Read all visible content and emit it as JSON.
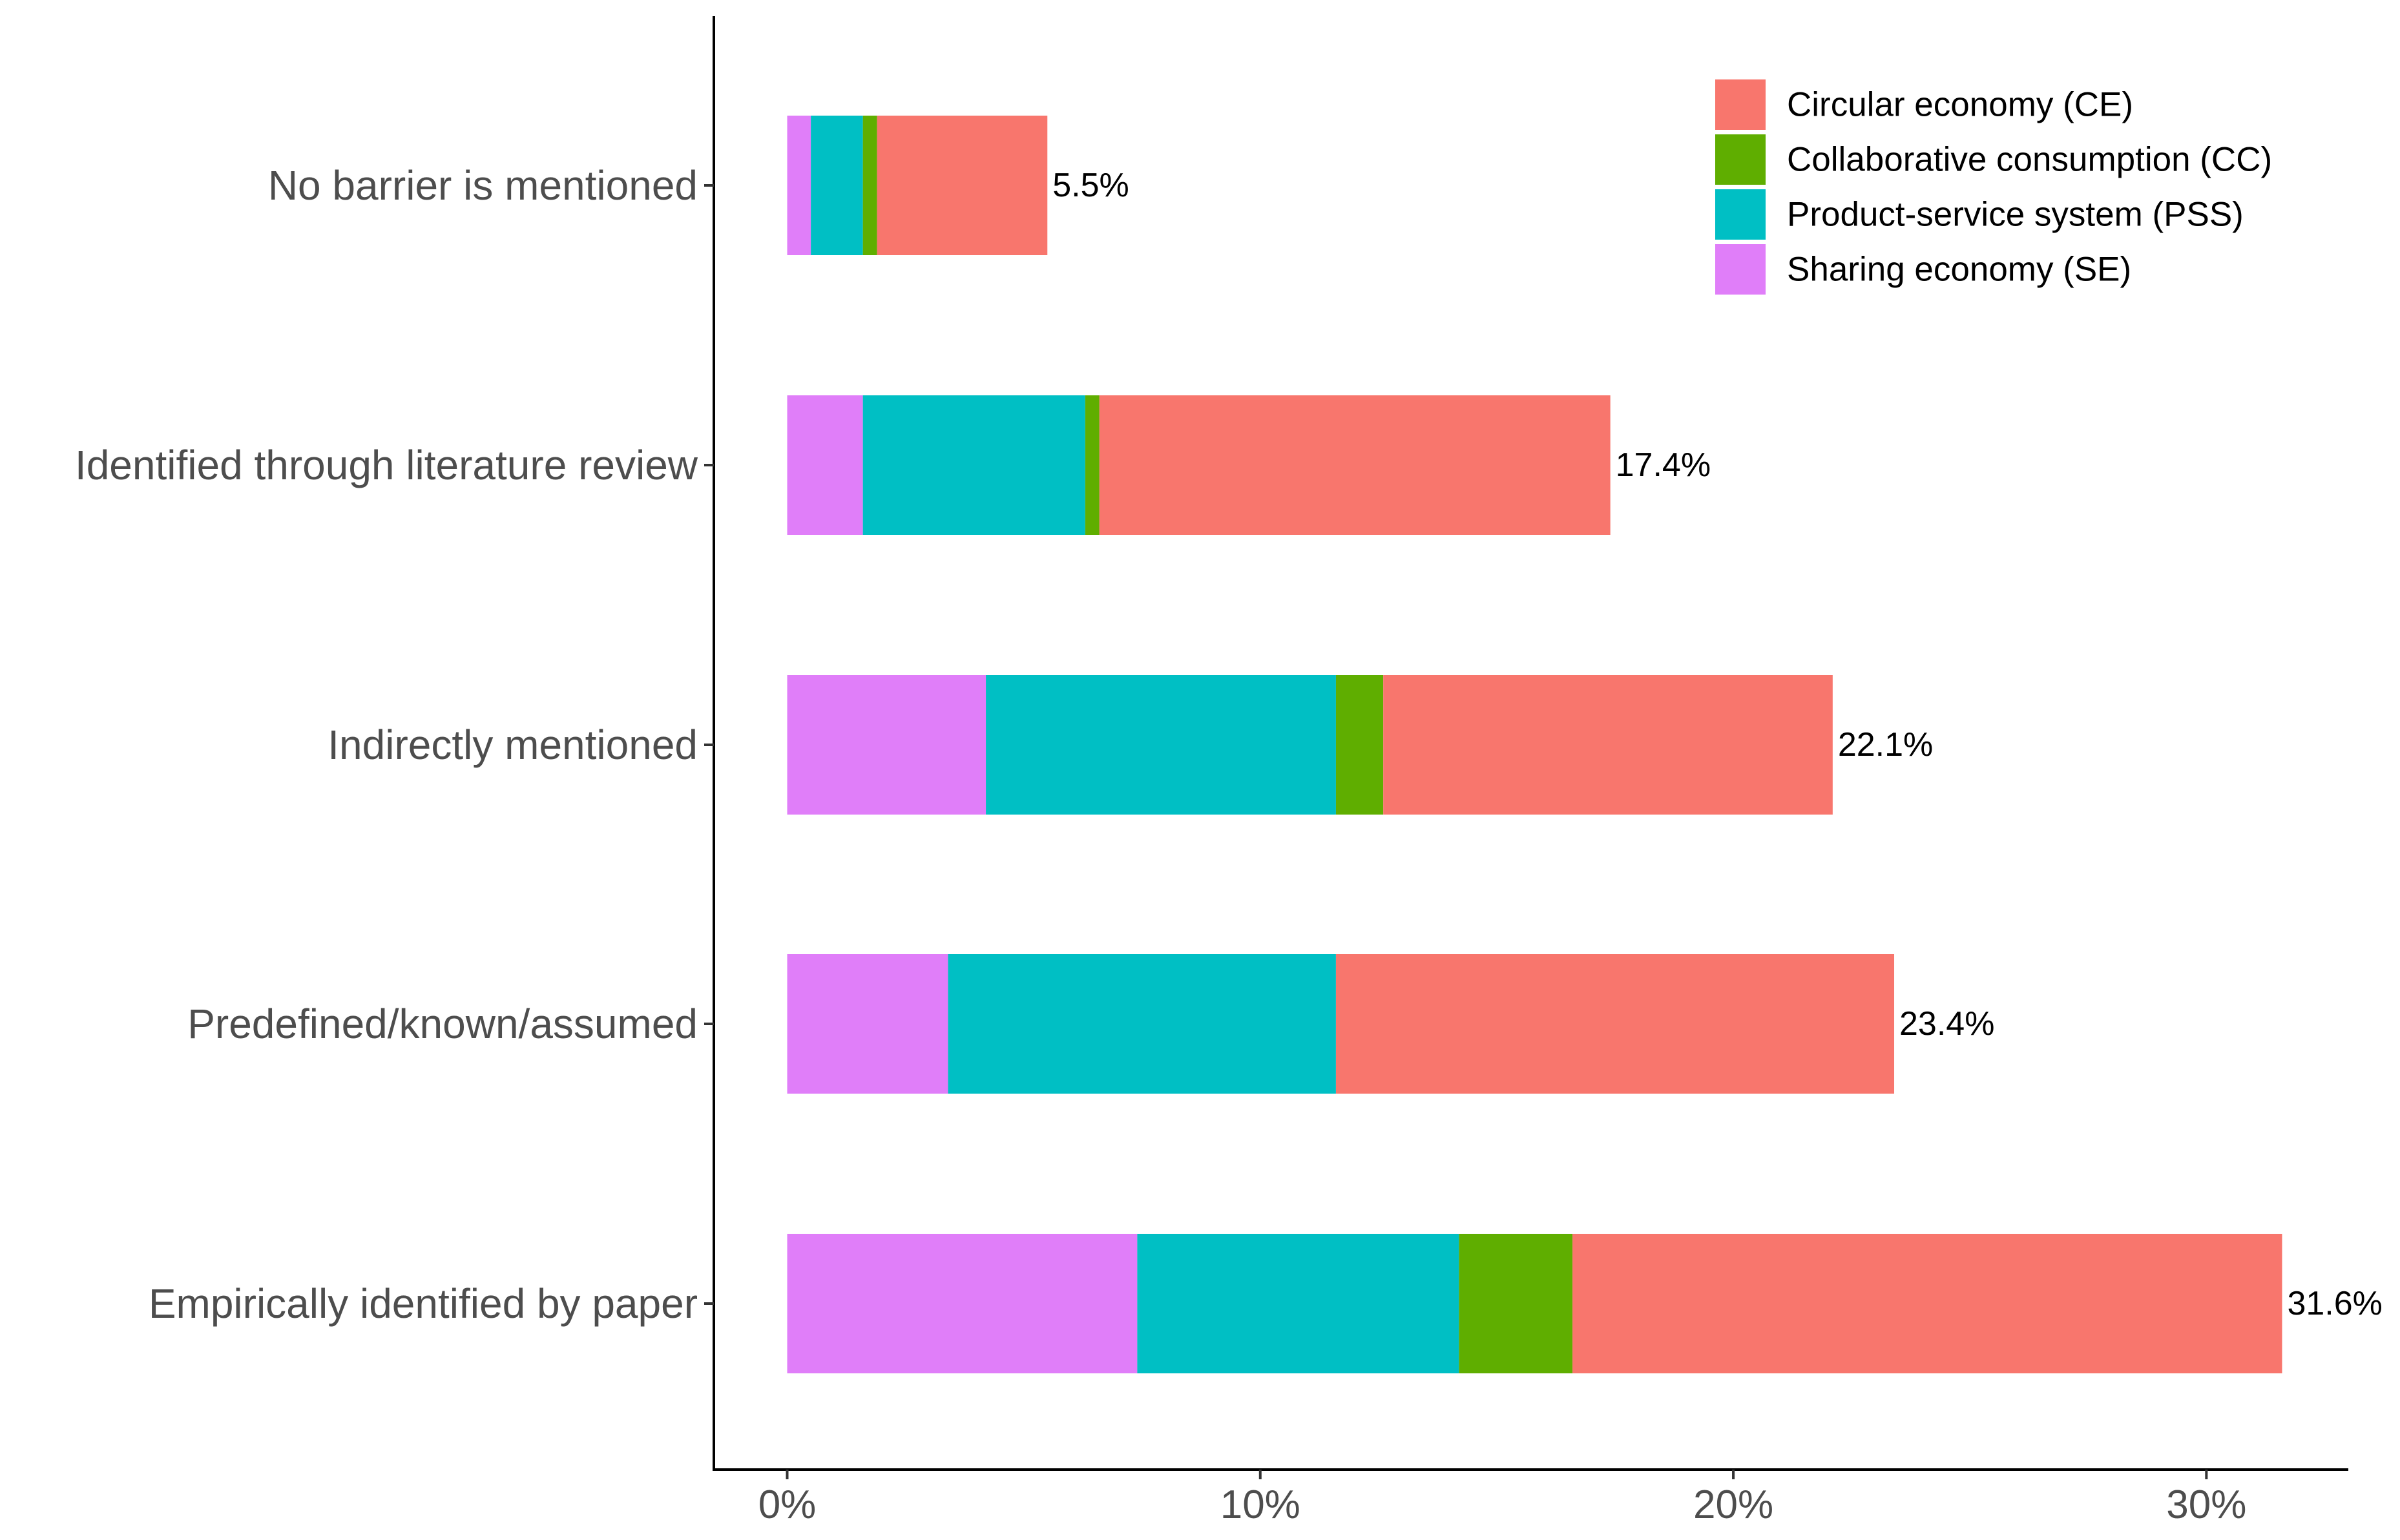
{
  "chart_data": {
    "type": "bar",
    "orientation": "horizontal",
    "stacked": true,
    "categories": [
      "No barrier is mentioned",
      "Identified through literature review",
      "Indirectly mentioned",
      "Predefined/known/assumed",
      "Empirically identified by paper"
    ],
    "series": [
      {
        "name": "Sharing economy (SE)",
        "color": "#E07EF9",
        "values": [
          0.5,
          1.6,
          4.2,
          3.4,
          7.4
        ]
      },
      {
        "name": "Product-service system (PSS)",
        "color": "#00BFC4",
        "values": [
          1.1,
          4.7,
          7.4,
          8.2,
          6.8
        ]
      },
      {
        "name": "Collaborative consumption (CC)",
        "color": "#5FAE00",
        "values": [
          0.3,
          0.3,
          1.0,
          0.0,
          2.4
        ]
      },
      {
        "name": "Circular economy (CE)",
        "color": "#F8766D",
        "values": [
          3.6,
          10.8,
          9.5,
          11.8,
          15.0
        ]
      }
    ],
    "legend_order": [
      "Circular economy (CE)",
      "Collaborative consumption (CC)",
      "Product-service system (PSS)",
      "Sharing economy (SE)"
    ],
    "totals": [
      5.5,
      17.4,
      22.1,
      23.4,
      31.6
    ],
    "total_labels": [
      "5.5%",
      "17.4%",
      "22.1%",
      "23.4%",
      "31.6%"
    ],
    "x_ticks": [
      0,
      10,
      20,
      30
    ],
    "x_tick_labels": [
      "0%",
      "10%",
      "20%",
      "30%"
    ],
    "xlim": [
      -1.55,
      33.0
    ],
    "title": "",
    "xlabel": "",
    "ylabel": "",
    "grid": false,
    "legend_position": "top-right"
  }
}
